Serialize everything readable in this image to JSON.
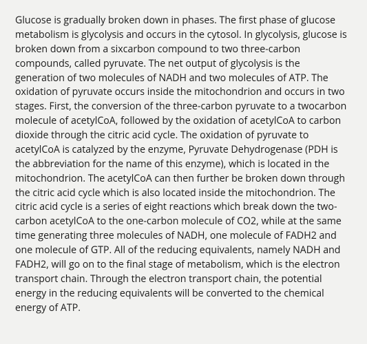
{
  "document": {
    "background_color": "#f2f2f0",
    "text_color": "#1a1a1a",
    "font_size": 14.2,
    "line_height": 1.47,
    "body_text": "Glucose is gradually broken down in phases. The first phase of glucose metabolism is glycolysis and occurs in the cytosol. In glycolysis, glucose is broken down from a sixcarbon compound to two three-carbon compounds, called pyruvate. The net output of glycolysis is the generation of two molecules of NADH and two molecules of ATP. The oxidation of pyruvate occurs inside the mitochondrion and occurs in two stages. First, the conversion of the three-carbon pyruvate to a twocarbon molecule of acetylCoA, followed by the oxidation of acetylCoA to carbon dioxide through the citric acid cycle. The oxidation of pyruvate to acetylCoA is catalyzed by the enzyme, Pyruvate Dehydrogenase (PDH is the abbreviation for the name of this enzyme), which is located in the mitochondrion. The acetylCoA can then further be broken down through the citric acid cycle which is also located inside the mitochondrion. The citric acid cycle is a series of eight reactions which break down the two-carbon acetylCoA to the one-carbon molecule of CO2, while at the same time generating three molecules of NADH, one molecule of FADH2 and one molecule of GTP. All of the reducing equivalents, namely NADH and FADH2, will go on to the final stage of metabolism, which is the electron transport chain. Through the electron transport chain, the potential energy in the reducing equivalents will be converted to the chemical energy of ATP."
  }
}
